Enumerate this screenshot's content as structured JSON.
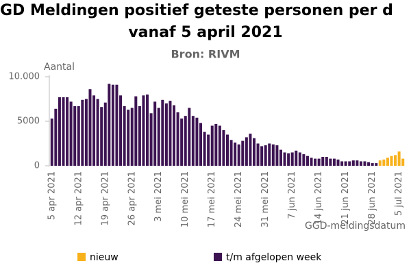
{
  "chart_data": {
    "type": "bar",
    "title": "GD Meldingen positief geteste personen per d",
    "title_line2": "vanaf 5 april 2021",
    "subtitle": "Bron: RIVM",
    "y_label": "Aantal",
    "x_label": "GGD-meldingsdatum",
    "categories": [
      "5 apr 2021",
      null,
      null,
      null,
      null,
      null,
      null,
      "12 apr 2021",
      null,
      null,
      null,
      null,
      null,
      null,
      "19 apr 2021",
      null,
      null,
      null,
      null,
      null,
      null,
      "26 apr 2021",
      null,
      null,
      null,
      null,
      null,
      null,
      "3 mei 2021",
      null,
      null,
      null,
      null,
      null,
      null,
      "10 mei 2021",
      null,
      null,
      null,
      null,
      null,
      null,
      "17 mei 2021",
      null,
      null,
      null,
      null,
      null,
      null,
      "24 mei 2021",
      null,
      null,
      null,
      null,
      null,
      null,
      "31 mei 2021",
      null,
      null,
      null,
      null,
      null,
      null,
      "7 jun 2021",
      null,
      null,
      null,
      null,
      null,
      null,
      "14 jun 2021",
      null,
      null,
      null,
      null,
      null,
      null,
      "21 jun 2021",
      null,
      null,
      null,
      null,
      null,
      null,
      "28 jun 2021",
      null,
      null,
      null,
      null,
      null,
      null,
      "5 jul 2021",
      null
    ],
    "series": [
      {
        "name": "nieuw",
        "color": "#f7b11b",
        "values": [
          null,
          null,
          null,
          null,
          null,
          null,
          null,
          null,
          null,
          null,
          null,
          null,
          null,
          null,
          null,
          null,
          null,
          null,
          null,
          null,
          null,
          null,
          null,
          null,
          null,
          null,
          null,
          null,
          null,
          null,
          null,
          null,
          null,
          null,
          null,
          null,
          null,
          null,
          null,
          null,
          null,
          null,
          null,
          null,
          null,
          null,
          null,
          null,
          null,
          null,
          null,
          null,
          null,
          null,
          null,
          null,
          null,
          null,
          null,
          null,
          null,
          null,
          null,
          null,
          null,
          null,
          null,
          null,
          null,
          null,
          null,
          null,
          null,
          null,
          null,
          null,
          null,
          null,
          null,
          null,
          null,
          null,
          null,
          null,
          null,
          null,
          600,
          700,
          900,
          1100,
          1200,
          1600,
          800
        ]
      },
      {
        "name": "t/m afgelopen week",
        "color": "#3d1452",
        "values": [
          5300,
          6400,
          7700,
          7700,
          7700,
          7200,
          6700,
          6700,
          7400,
          7500,
          8600,
          7900,
          7500,
          6600,
          7100,
          9200,
          9100,
          9100,
          7900,
          6700,
          6300,
          6500,
          7800,
          6700,
          7900,
          8000,
          5900,
          7200,
          6500,
          7400,
          7000,
          7300,
          6800,
          6000,
          5300,
          5600,
          6500,
          5600,
          5400,
          4800,
          3800,
          3500,
          4500,
          4700,
          4500,
          4000,
          3500,
          2900,
          2600,
          2400,
          2800,
          3200,
          3600,
          3100,
          2500,
          2200,
          2300,
          2500,
          2400,
          2300,
          1800,
          1500,
          1400,
          1500,
          1700,
          1500,
          1300,
          1100,
          900,
          800,
          800,
          1000,
          1000,
          800,
          800,
          700,
          500,
          500,
          500,
          600,
          600,
          500,
          500,
          400,
          300,
          300,
          null,
          null,
          null,
          null,
          null,
          null,
          null
        ]
      }
    ],
    "ylim": [
      0,
      10000
    ],
    "yticks": [
      0,
      5000,
      {
        "value": 10000,
        "label": "10.000"
      }
    ],
    "grid": false
  }
}
